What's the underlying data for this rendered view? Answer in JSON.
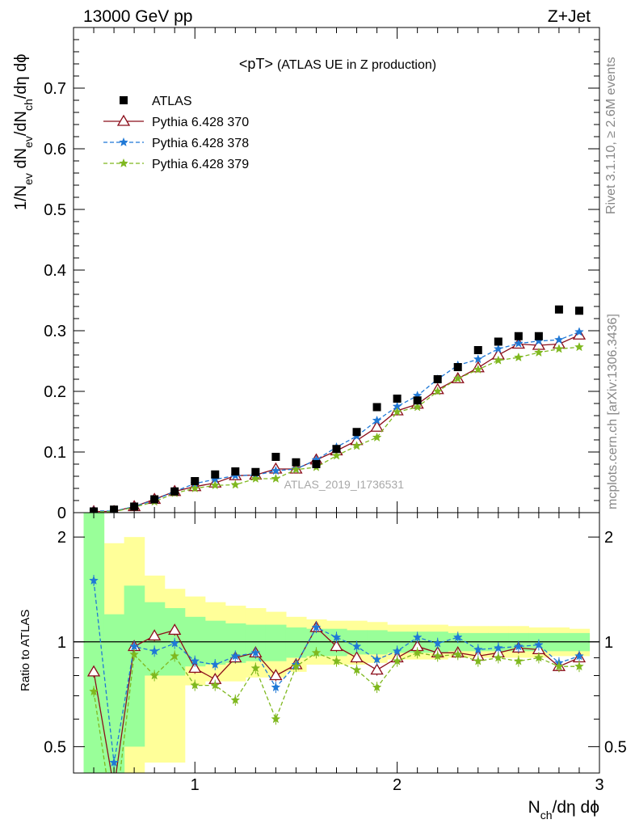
{
  "header": {
    "left": "13000 GeV pp",
    "right": "Z+Jet"
  },
  "side_labels": {
    "top": "Rivet 3.1.10, ≥ 2.6M events",
    "bottom": "mcplots.cern.ch [arXiv:1306.3436]"
  },
  "watermark": "ATLAS_2019_I1736531",
  "main_title": {
    "a": "<pT>",
    "b": "(ATLAS UE in Z production)"
  },
  "chart_data": {
    "type": "scatter",
    "x_label": {
      "main": "N",
      "sub": "ch",
      "tail": "/dη dϕ"
    },
    "y_label_top": "1/N_ev dN_ev/dN_ch/dη dϕ",
    "y_label_bottom": "Ratio to ATLAS",
    "x_range": [
      0.4,
      3.0
    ],
    "y_range_top": [
      0,
      0.8
    ],
    "y_range_bottom": [
      0.42,
      2.35
    ],
    "y_log_bottom": true,
    "x_ticks": [
      "1",
      "2",
      "3"
    ],
    "y_ticks_top": [
      "0",
      "0.1",
      "0.2",
      "0.3",
      "0.4",
      "0.5",
      "0.6",
      "0.7"
    ],
    "y_ticks_bottom": [
      "0.5",
      "1",
      "2"
    ],
    "x": [
      0.5,
      0.6,
      0.7,
      0.8,
      0.9,
      1.0,
      1.1,
      1.2,
      1.3,
      1.4,
      1.5,
      1.6,
      1.7,
      1.8,
      1.9,
      2.0,
      2.1,
      2.2,
      2.3,
      2.4,
      2.5,
      2.6,
      2.7,
      2.8,
      2.9
    ],
    "data": {
      "name": "ATLAS",
      "color": "#000000",
      "y": [
        0.002,
        0.005,
        0.01,
        0.022,
        0.035,
        0.052,
        0.063,
        0.068,
        0.067,
        0.092,
        0.083,
        0.08,
        0.105,
        0.133,
        0.174,
        0.188,
        0.185,
        0.22,
        0.24,
        0.268,
        0.282,
        0.291,
        0.291,
        0.335,
        0.333
      ]
    },
    "series": [
      {
        "name": "Pythia 6.428 370",
        "color": "#8b0d1a",
        "style": "solid",
        "marker": "triangle",
        "y": [
          0.0018,
          0.002,
          0.01,
          0.022,
          0.035,
          0.043,
          0.049,
          0.061,
          0.062,
          0.072,
          0.072,
          0.087,
          0.102,
          0.119,
          0.141,
          0.168,
          0.179,
          0.203,
          0.221,
          0.239,
          0.26,
          0.278,
          0.276,
          0.278,
          0.293
        ],
        "ratio": [
          0.82,
          0.38,
          0.97,
          1.04,
          1.08,
          0.84,
          0.78,
          0.9,
          0.93,
          0.8,
          0.86,
          1.1,
          0.97,
          0.9,
          0.83,
          0.9,
          0.97,
          0.93,
          0.93,
          0.91,
          0.93,
          0.96,
          0.95,
          0.85,
          0.9
        ]
      },
      {
        "name": "Pythia 6.428 378",
        "color": "#1f78d6",
        "style": "dashed",
        "marker": "star",
        "y": [
          0.003,
          0.0025,
          0.01,
          0.021,
          0.035,
          0.048,
          0.055,
          0.061,
          0.062,
          0.069,
          0.072,
          0.087,
          0.108,
          0.126,
          0.152,
          0.175,
          0.193,
          0.22,
          0.243,
          0.253,
          0.27,
          0.279,
          0.283,
          0.285,
          0.298
        ],
        "ratio": [
          1.5,
          0.45,
          0.97,
          0.94,
          0.99,
          0.88,
          0.86,
          0.91,
          0.93,
          0.74,
          0.86,
          1.1,
          1.03,
          0.97,
          0.89,
          0.94,
          1.03,
          0.99,
          1.03,
          0.95,
          0.96,
          0.97,
          0.98,
          0.87,
          0.91
        ]
      },
      {
        "name": "Pythia 6.428 379",
        "color": "#7fb81f",
        "style": "dashed",
        "marker": "star",
        "y": [
          0.0015,
          0.0015,
          0.009,
          0.018,
          0.032,
          0.04,
          0.045,
          0.046,
          0.056,
          0.056,
          0.071,
          0.075,
          0.094,
          0.11,
          0.124,
          0.166,
          0.174,
          0.2,
          0.221,
          0.236,
          0.251,
          0.256,
          0.264,
          0.27,
          0.273
        ],
        "ratio": [
          0.72,
          0.3,
          0.92,
          0.8,
          0.91,
          0.75,
          0.75,
          0.68,
          0.84,
          0.6,
          0.85,
          0.93,
          0.88,
          0.83,
          0.74,
          0.88,
          0.93,
          0.91,
          0.92,
          0.88,
          0.9,
          0.88,
          0.9,
          0.85,
          0.85
        ]
      }
    ],
    "bands": {
      "inner_color": "#99ff99",
      "outer_color": "#ffff99",
      "inner": [
        [
          0.3,
          2.5
        ],
        [
          0.3,
          1.2
        ],
        [
          0.5,
          1.45
        ],
        [
          0.8,
          1.3
        ],
        [
          0.8,
          1.25
        ],
        [
          0.85,
          1.18
        ],
        [
          0.86,
          1.15
        ],
        [
          0.87,
          1.13
        ],
        [
          0.88,
          1.12
        ],
        [
          0.88,
          1.12
        ],
        [
          0.9,
          1.1
        ],
        [
          0.91,
          1.09
        ],
        [
          0.91,
          1.09
        ],
        [
          0.92,
          1.08
        ],
        [
          0.92,
          1.08
        ],
        [
          0.93,
          1.07
        ],
        [
          0.93,
          1.07
        ],
        [
          0.93,
          1.07
        ],
        [
          0.94,
          1.06
        ],
        [
          0.94,
          1.06
        ],
        [
          0.94,
          1.06
        ],
        [
          0.94,
          1.06
        ],
        [
          0.94,
          1.06
        ],
        [
          0.94,
          1.06
        ],
        [
          0.94,
          1.06
        ]
      ],
      "outer": [
        [
          0.3,
          2.5
        ],
        [
          0.3,
          1.92
        ],
        [
          0.3,
          2.0
        ],
        [
          0.45,
          1.55
        ],
        [
          0.45,
          1.42
        ],
        [
          0.75,
          1.35
        ],
        [
          0.77,
          1.3
        ],
        [
          0.77,
          1.27
        ],
        [
          0.79,
          1.25
        ],
        [
          0.79,
          1.22
        ],
        [
          0.82,
          1.18
        ],
        [
          0.86,
          1.16
        ],
        [
          0.86,
          1.15
        ],
        [
          0.86,
          1.15
        ],
        [
          0.87,
          1.14
        ],
        [
          0.89,
          1.12
        ],
        [
          0.89,
          1.12
        ],
        [
          0.89,
          1.12
        ],
        [
          0.9,
          1.11
        ],
        [
          0.9,
          1.11
        ],
        [
          0.9,
          1.11
        ],
        [
          0.9,
          1.11
        ],
        [
          0.9,
          1.1
        ],
        [
          0.91,
          1.1
        ],
        [
          0.91,
          1.09
        ]
      ]
    }
  }
}
